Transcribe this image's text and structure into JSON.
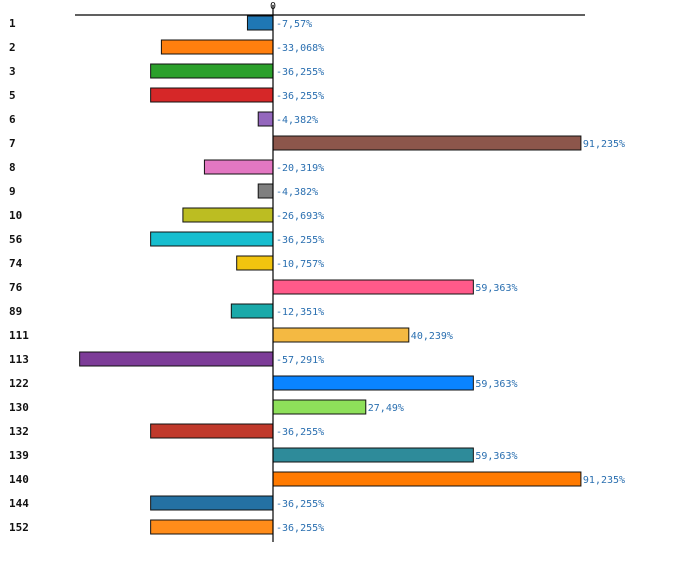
{
  "chart_data": {
    "type": "bar",
    "orientation": "horizontal",
    "title": "",
    "xlabel": "",
    "ylabel": "",
    "zero_label": "0",
    "xlim": [
      -60,
      100
    ],
    "grid": false,
    "categories": [
      "1",
      "2",
      "3",
      "5",
      "6",
      "7",
      "8",
      "9",
      "10",
      "56",
      "74",
      "76",
      "89",
      "111",
      "113",
      "122",
      "130",
      "132",
      "139",
      "140",
      "144",
      "152"
    ],
    "values": [
      -7.57,
      -33.068,
      -36.255,
      -36.255,
      -4.382,
      91.235,
      -20.319,
      -4.382,
      -26.693,
      -36.255,
      -10.757,
      59.363,
      -12.351,
      40.239,
      -57.291,
      59.363,
      27.49,
      -36.255,
      59.363,
      91.235,
      -36.255,
      -36.255
    ],
    "value_labels": [
      "-7,57%",
      "-33,068%",
      "-36,255%",
      "-36,255%",
      "-4,382%",
      "91,235%",
      "-20,319%",
      "-4,382%",
      "-26,693%",
      "-36,255%",
      "-10,757%",
      "59,363%",
      "-12,351%",
      "40,239%",
      "-57,291%",
      "59,363%",
      "27,49%",
      "-36,255%",
      "59,363%",
      "91,235%",
      "-36,255%",
      "-36,255%"
    ],
    "colors": [
      "#1f77b4",
      "#ff7f0e",
      "#2ca02c",
      "#d62728",
      "#9467bd",
      "#8c564b",
      "#e377c2",
      "#7f7f7f",
      "#bcbd22",
      "#17becf",
      "#f1c40f",
      "#ff5a8a",
      "#1aa9a9",
      "#f4b942",
      "#7d3c98",
      "#0a84ff",
      "#8ee05a",
      "#c0392b",
      "#2e8b9a",
      "#ff7a00",
      "#2471a3",
      "#ff8c1a"
    ]
  }
}
